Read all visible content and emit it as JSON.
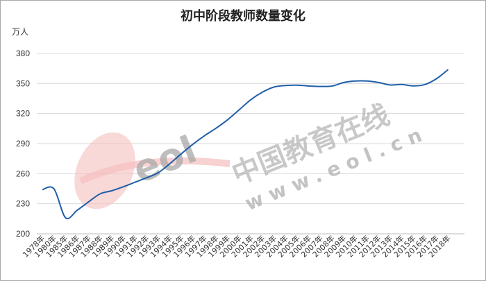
{
  "chart_data": {
    "type": "line",
    "title": "初中阶段教师数量变化",
    "ylabel": "万人",
    "xlabel": "",
    "ylim": [
      200,
      380
    ],
    "yticks": [
      200,
      230,
      260,
      290,
      320,
      350,
      380
    ],
    "grid": "horizontal",
    "series_color": "#1f5fa8",
    "categories": [
      "1978年",
      "1980年",
      "1985年",
      "1986年",
      "1987年",
      "1988年",
      "1989年",
      "1990年",
      "1991年",
      "1992年",
      "1993年",
      "1994年",
      "1995年",
      "1996年",
      "1997年",
      "1998年",
      "1999年",
      "2000年",
      "2001年",
      "2002年",
      "2003年",
      "2004年",
      "2005年",
      "2006年",
      "2007年",
      "2008年",
      "2009年",
      "2010年",
      "2011年",
      "2012年",
      "2013年",
      "2014年",
      "2015年",
      "2016年",
      "2017年",
      "2018年"
    ],
    "values": [
      244.1,
      244.9,
      216.0,
      223.5,
      232.0,
      240.0,
      243.0,
      247.0,
      251.5,
      256.0,
      261.0,
      270.0,
      280.0,
      289.5,
      298.0,
      305.5,
      314.0,
      324.0,
      334.0,
      341.5,
      346.5,
      348.0,
      348.3,
      347.5,
      347.0,
      347.5,
      351.0,
      352.5,
      352.5,
      351.0,
      348.5,
      349.0,
      347.6,
      349.0,
      354.8,
      363.9
    ]
  },
  "watermark": {
    "text": "中国教育在线",
    "url": "www.eol.cn",
    "logo": "eol",
    "primary_color": "#b8b8b8",
    "accent_color": "#f3b4b4"
  }
}
